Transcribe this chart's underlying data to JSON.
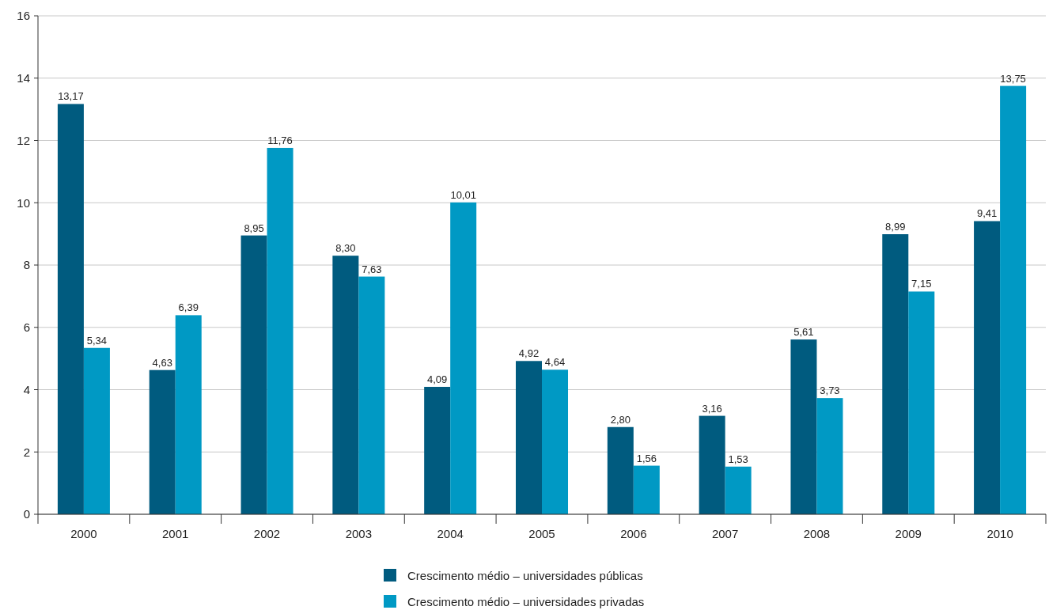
{
  "chart_data": {
    "type": "bar",
    "categories": [
      "2000",
      "2001",
      "2002",
      "2003",
      "2004",
      "2005",
      "2006",
      "2007",
      "2008",
      "2009",
      "2010"
    ],
    "series": [
      {
        "name": "Crescimento médio – universidades públicas",
        "color": "#005b7f",
        "values": [
          13.17,
          4.63,
          8.95,
          8.3,
          4.09,
          4.92,
          2.8,
          3.16,
          5.61,
          8.99,
          9.41
        ],
        "value_labels": [
          "13,17",
          "4,63",
          "8,95",
          "8,30",
          "4,09",
          "4,92",
          "2,80",
          "3,16",
          "5,61",
          "8,99",
          "9,41"
        ]
      },
      {
        "name": "Crescimento médio – universidades privadas",
        "color": "#0099c4",
        "values": [
          5.34,
          6.39,
          11.76,
          7.63,
          10.01,
          4.64,
          1.56,
          1.53,
          3.73,
          7.15,
          13.75
        ],
        "value_labels": [
          "5,34",
          "6,39",
          "11,76",
          "7,63",
          "10,01",
          "4,64",
          "1,56",
          "1,53",
          "3,73",
          "7,15",
          "13,75"
        ]
      }
    ],
    "ylim": [
      0,
      16
    ],
    "yticks": [
      0,
      2,
      4,
      6,
      8,
      10,
      12,
      14,
      16
    ],
    "grid": "y",
    "legend": "bottom"
  }
}
